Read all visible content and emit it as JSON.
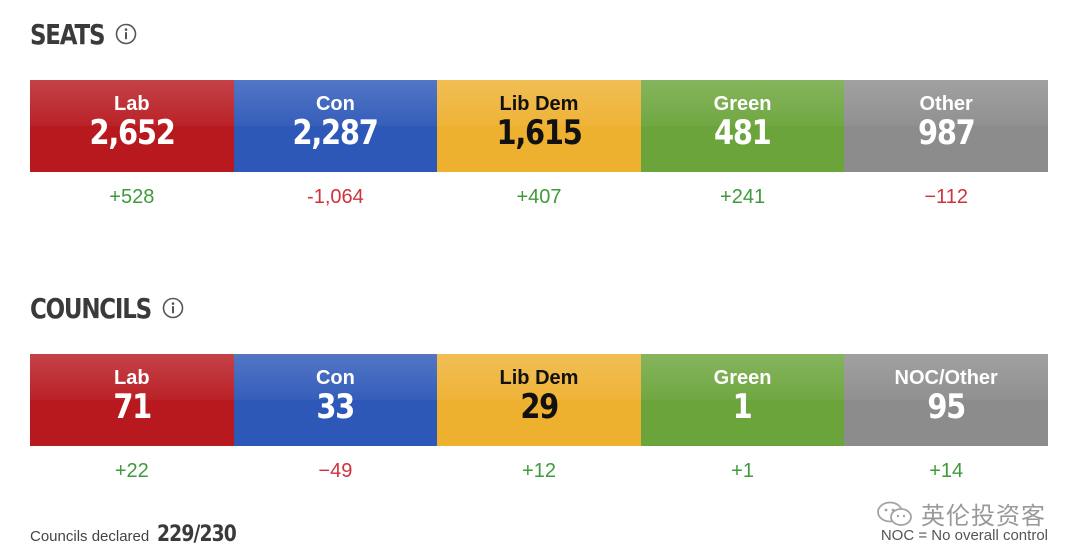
{
  "seats": {
    "title": "SEATS",
    "parties": [
      {
        "label": "Lab",
        "value": "2,652",
        "change": "+528",
        "color": "#b7191f"
      },
      {
        "label": "Con",
        "value": "2,287",
        "change": "-1,064",
        "color": "#2d58b8"
      },
      {
        "label": "Lib Dem",
        "value": "1,615",
        "change": "+407",
        "color": "#eeb02f"
      },
      {
        "label": "Green",
        "value": "481",
        "change": "+241",
        "color": "#6ba43a"
      },
      {
        "label": "Other",
        "value": "987",
        "change": "−112",
        "color": "#8c8c8c"
      }
    ]
  },
  "councils": {
    "title": "COUNCILS",
    "parties": [
      {
        "label": "Lab",
        "value": "71",
        "change": "+22",
        "color": "#b7191f"
      },
      {
        "label": "Con",
        "value": "33",
        "change": "−49",
        "color": "#2d58b8"
      },
      {
        "label": "Lib Dem",
        "value": "29",
        "change": "+12",
        "color": "#eeb02f"
      },
      {
        "label": "Green",
        "value": "1",
        "change": "+1",
        "color": "#6ba43a"
      },
      {
        "label": "NOC/Other",
        "value": "95",
        "change": "+14",
        "color": "#8c8c8c"
      }
    ]
  },
  "footer": {
    "declared_label": "Councils declared",
    "declared_value": "229/230",
    "noc_note": "NOC = No overall control"
  },
  "watermark": {
    "text": "英伦投资客"
  },
  "colors": {
    "positive": "#3e9a3a",
    "negative": "#d0323e"
  },
  "icons": {
    "section_info": "info-circle-icon",
    "watermark_logo": "wechat-logo-icon"
  }
}
